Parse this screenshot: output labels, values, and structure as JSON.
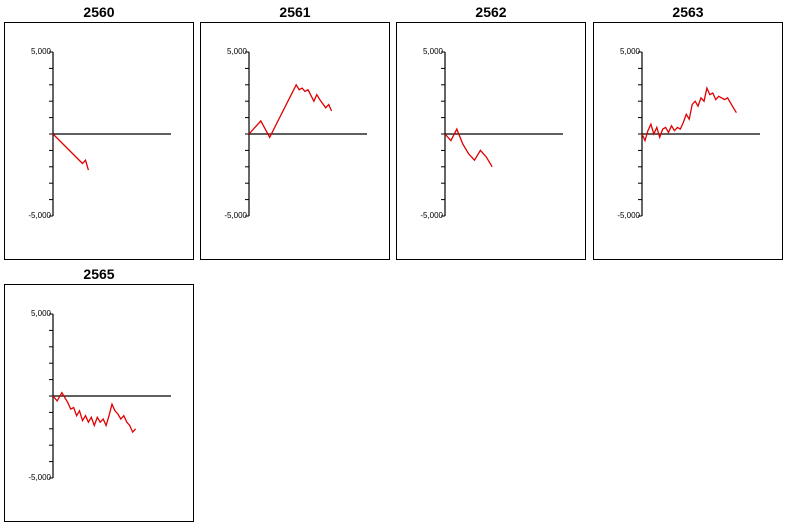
{
  "chart_data": [
    {
      "type": "line",
      "title": "2560",
      "ylim": [
        -5000,
        5000
      ],
      "ytick_labels": [
        "5,000",
        "-5,000"
      ],
      "xlim": [
        0,
        20
      ],
      "series_color": "#e00000",
      "zero_line": true,
      "x": [
        0,
        5,
        5.5,
        6
      ],
      "y": [
        0,
        -1800,
        -1600,
        -2200
      ]
    },
    {
      "type": "line",
      "title": "2561",
      "ylim": [
        -5000,
        5000
      ],
      "ytick_labels": [
        "5,000",
        "-5,000"
      ],
      "xlim": [
        0,
        20
      ],
      "series_color": "#e00000",
      "zero_line": true,
      "x": [
        0,
        2,
        3.5,
        8,
        8.5,
        9,
        9.5,
        10,
        11,
        11.5,
        12,
        13,
        13.5,
        14
      ],
      "y": [
        0,
        800,
        -200,
        3000,
        2700,
        2800,
        2600,
        2700,
        2000,
        2400,
        2100,
        1600,
        1800,
        1400
      ],
      "_note": ""
    },
    {
      "type": "line",
      "title": "2562",
      "ylim": [
        -5000,
        5000
      ],
      "ytick_labels": [
        "5,000",
        "-5,000"
      ],
      "xlim": [
        0,
        20
      ],
      "series_color": "#e00000",
      "zero_line": true,
      "x": [
        0,
        1,
        2,
        3,
        4,
        4.5,
        5,
        6,
        7,
        8
      ],
      "y": [
        0,
        -400,
        300,
        -600,
        -1200,
        -1400,
        -1600,
        -1000,
        -1400,
        -2000
      ]
    },
    {
      "type": "line",
      "title": "2563",
      "ylim": [
        -5000,
        5000
      ],
      "ytick_labels": [
        "5,000",
        "-5,000"
      ],
      "xlim": [
        0,
        20
      ],
      "series_color": "#e00000",
      "zero_line": true,
      "x": [
        0,
        0.5,
        1,
        1.5,
        2,
        2.5,
        3,
        3.5,
        4,
        4.5,
        5,
        5.5,
        6,
        6.5,
        7,
        7.5,
        8,
        8.5,
        9,
        9.5,
        10,
        10.5,
        11,
        11.5,
        12,
        12.5,
        13,
        13.5,
        14,
        14.5,
        15,
        15.5,
        16
      ],
      "y": [
        0,
        -400,
        200,
        600,
        0,
        400,
        -200,
        300,
        400,
        100,
        500,
        200,
        400,
        300,
        700,
        1200,
        900,
        1800,
        2000,
        1700,
        2200,
        2000,
        2800,
        2400,
        2500,
        2100,
        2300,
        2200,
        2100,
        2200,
        1900,
        1600,
        1300
      ]
    },
    {
      "type": "line",
      "title": "2565",
      "ylim": [
        -5000,
        5000
      ],
      "ytick_labels": [
        "5,000",
        "-5,000"
      ],
      "xlim": [
        0,
        20
      ],
      "series_color": "#e00000",
      "zero_line": true,
      "x": [
        0,
        0.7,
        1.5,
        2.5,
        3,
        3.5,
        4,
        4.5,
        5,
        5.5,
        6,
        6.5,
        7,
        7.5,
        8,
        8.5,
        9,
        9.5,
        10,
        10.5,
        11,
        11.5,
        12,
        12.5,
        13,
        13.5,
        14
      ],
      "y": [
        0,
        -300,
        200,
        -400,
        -800,
        -700,
        -1200,
        -900,
        -1500,
        -1200,
        -1600,
        -1300,
        -1800,
        -1300,
        -1600,
        -1400,
        -1800,
        -1200,
        -500,
        -900,
        -1100,
        -1400,
        -1200,
        -1600,
        -1800,
        -2200,
        -2000
      ]
    }
  ]
}
